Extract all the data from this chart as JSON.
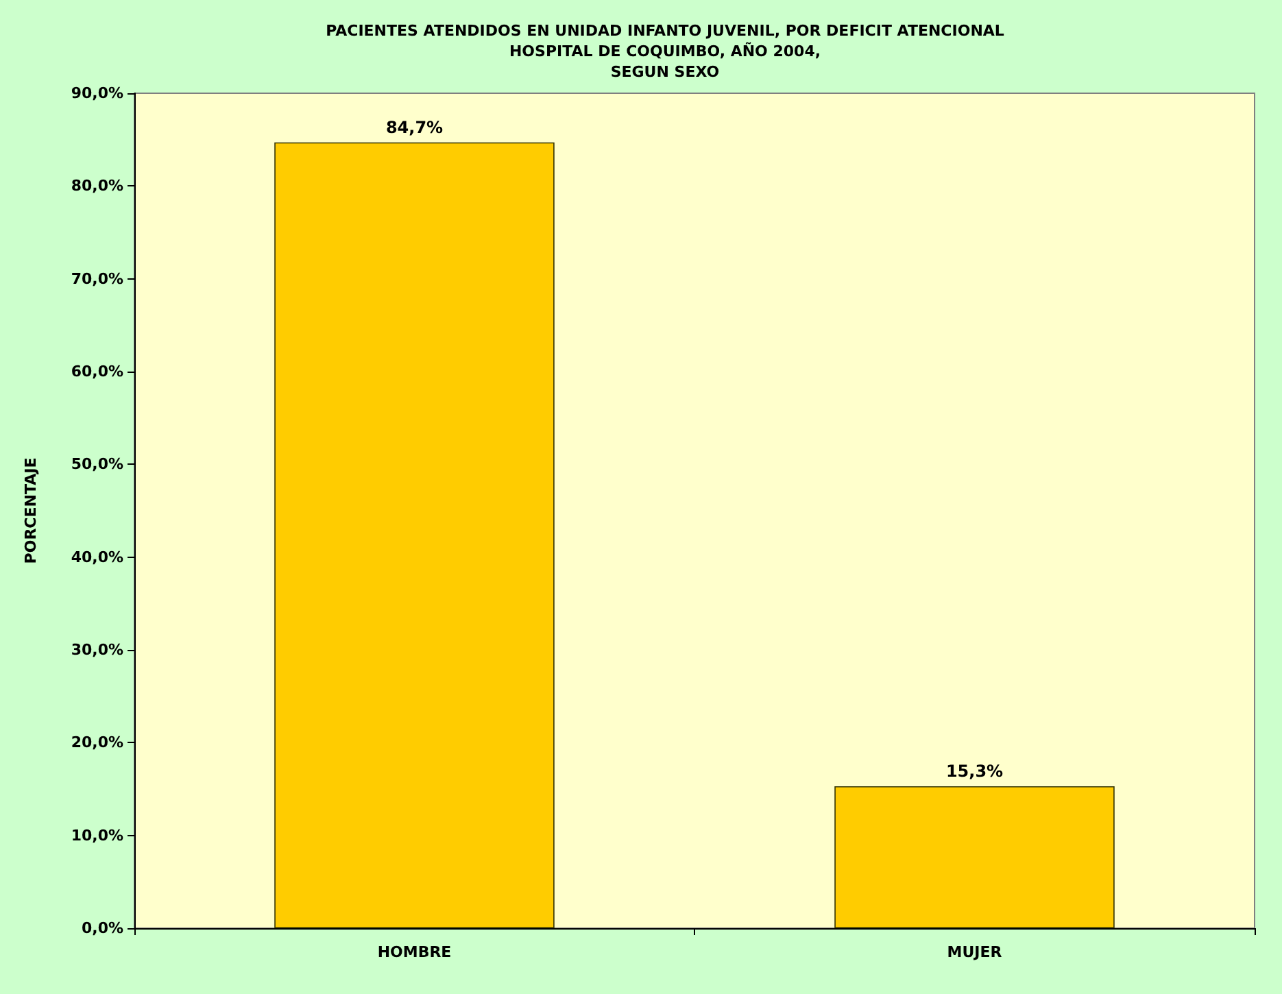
{
  "chart_data": {
    "type": "bar",
    "title": "PACIENTES ATENDIDOS EN UNIDAD INFANTO JUVENIL, POR DEFICIT ATENCIONAL\nHOSPITAL DE COQUIMBO, AÑO 2004,\nSEGUN SEXO",
    "ylabel": "PORCENTAJE",
    "categories": [
      "HOMBRE",
      "MUJER"
    ],
    "values": [
      84.7,
      15.3
    ],
    "color": "#ffcc00",
    "value_labels": [
      "84,7%",
      "15,3%"
    ],
    "ylim": [
      0,
      90
    ],
    "yticks": [
      {
        "value": 0,
        "label": "0,0%"
      },
      {
        "value": 10,
        "label": "10,0%"
      },
      {
        "value": 20,
        "label": "20,0%"
      },
      {
        "value": 30,
        "label": "30,0%"
      },
      {
        "value": 40,
        "label": "40,0%"
      },
      {
        "value": 50,
        "label": "50,0%"
      },
      {
        "value": 60,
        "label": "60,0%"
      },
      {
        "value": 70,
        "label": "70,0%"
      },
      {
        "value": 80,
        "label": "80,0%"
      },
      {
        "value": 90,
        "label": "90,0%"
      }
    ],
    "grid": false
  }
}
